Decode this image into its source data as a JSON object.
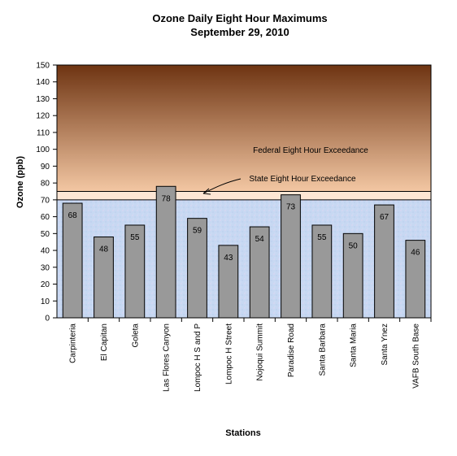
{
  "chart_data": {
    "type": "bar",
    "title": "Ozone Daily Eight Hour Maximums",
    "subtitle": "September 29, 2010",
    "xlabel": "Stations",
    "ylabel": "Ozone (ppb)",
    "ylim": [
      0,
      150
    ],
    "ytick_step": 10,
    "categories": [
      "Carpinteria",
      "El Capitan",
      "Goleta",
      "Las Flores Canyon",
      "Lompoc H S and P",
      "Lompoc H Street",
      "Nojoqui Summit",
      "Paradise Road",
      "Santa Barbara",
      "Santa Maria",
      "Santa Ynez",
      "VAFB South Base"
    ],
    "values": [
      68,
      48,
      55,
      78,
      59,
      43,
      54,
      73,
      55,
      50,
      67,
      46
    ],
    "bar_color": "#999999",
    "thresholds": {
      "state": 70,
      "federal": 75
    },
    "annotations": {
      "federal_label": "Federal Eight Hour Exceedance",
      "state_label": "State Eight Hour Exceedance"
    },
    "background": {
      "top_color": "#6e3412",
      "mid_color": "#f3c7a3",
      "band_color": "#fde6d4",
      "lower_color": "#c7d8f2"
    },
    "grid": false,
    "legend": "none"
  }
}
